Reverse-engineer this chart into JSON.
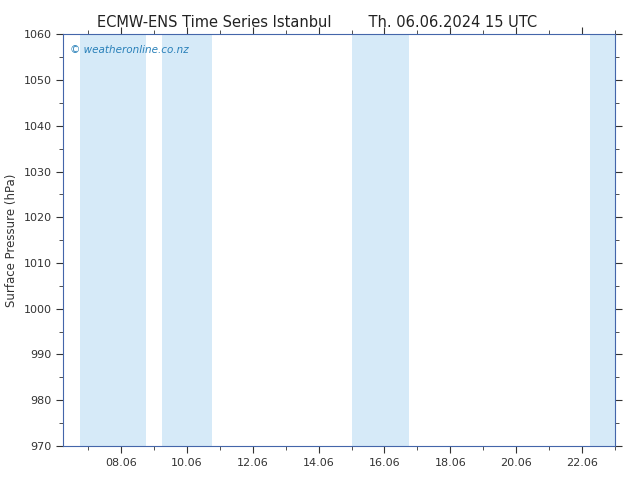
{
  "title_left": "ECMW-ENS Time Series Istanbul",
  "title_right": "Th. 06.06.2024 15 UTC",
  "ylabel": "Surface Pressure (hPa)",
  "ylim": [
    970,
    1060
  ],
  "yticks": [
    970,
    980,
    990,
    1000,
    1010,
    1020,
    1030,
    1040,
    1050,
    1060
  ],
  "xlim_start": 6.25,
  "xlim_end": 23.0,
  "xtick_positions": [
    8,
    10,
    12,
    14,
    16,
    18,
    20,
    22
  ],
  "xtick_labels": [
    "08.06",
    "10.06",
    "12.06",
    "14.06",
    "16.06",
    "18.06",
    "20.06",
    "22.06"
  ],
  "shaded_bands": [
    {
      "xmin": 6.75,
      "xmax": 8.75
    },
    {
      "xmin": 9.25,
      "xmax": 10.75
    },
    {
      "xmin": 15.0,
      "xmax": 16.75
    },
    {
      "xmin": 22.25,
      "xmax": 23.1
    }
  ],
  "band_color": "#d6eaf8",
  "background_color": "#ffffff",
  "plot_bg_color": "#ffffff",
  "watermark_text": "© weatheronline.co.nz",
  "watermark_color": "#2980b9",
  "title_color": "#222222",
  "axis_color": "#4466aa",
  "tick_color": "#333333",
  "title_fontsize": 10.5,
  "tick_fontsize": 8,
  "ylabel_fontsize": 8.5
}
